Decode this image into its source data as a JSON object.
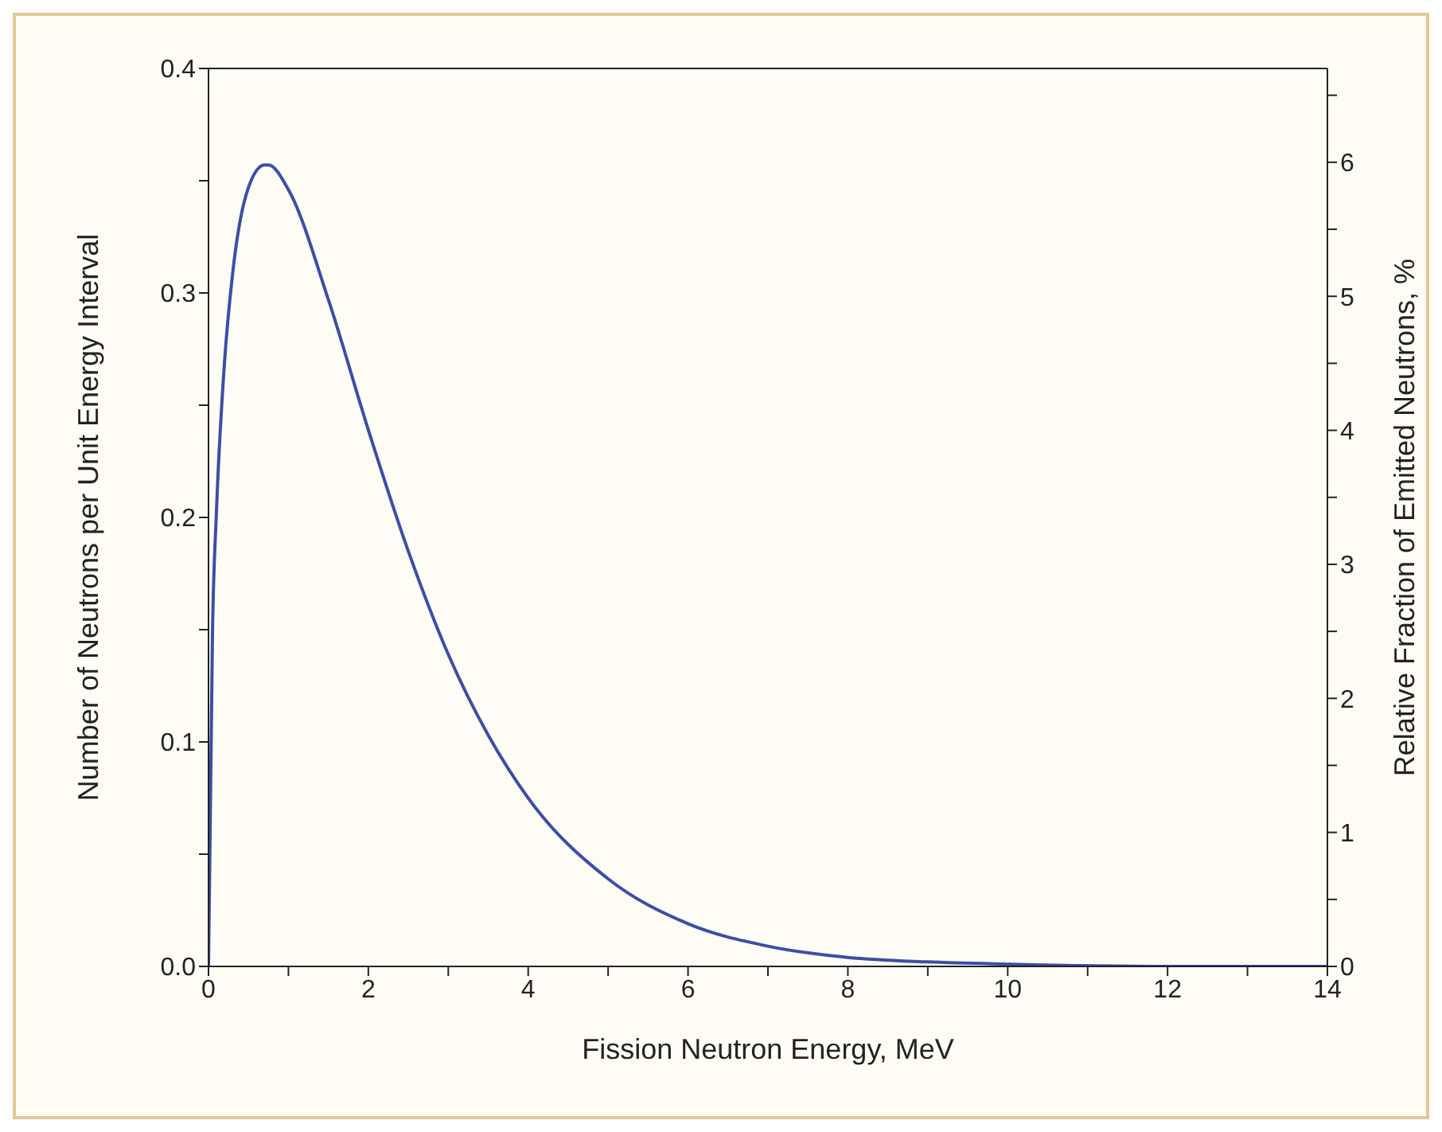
{
  "chart_data": {
    "type": "line",
    "xlabel": "Fission Neutron Energy, MeV",
    "ylabel": "Number of Neutrons per Unit Energy Interval",
    "y2label": "Relative Fraction of Emitted Neutrons, %",
    "x": [
      0,
      0.05,
      0.1,
      0.2,
      0.3,
      0.5,
      0.7,
      0.75,
      1,
      1.5,
      2,
      2.5,
      3,
      3.5,
      4,
      5,
      6,
      7,
      8,
      9,
      10,
      12,
      14
    ],
    "series": [
      {
        "color": "#3b4fa3",
        "values": [
          0,
          0.149,
          0.203,
          0.269,
          0.308,
          0.347,
          0.357,
          0.357,
          0.346,
          0.297,
          0.239,
          0.185,
          0.139,
          0.103,
          0.075,
          0.039,
          0.019,
          0.009,
          0.004,
          0.002,
          0.001,
          0,
          0
        ]
      }
    ],
    "xlim": [
      0,
      14
    ],
    "xticks": [
      0,
      {
        "value": 1,
        "label": null
      },
      2,
      {
        "value": 3,
        "label": null
      },
      4,
      {
        "value": 5,
        "label": null
      },
      6,
      {
        "value": 7,
        "label": null
      },
      8,
      {
        "value": 9,
        "label": null
      },
      10,
      {
        "value": 11,
        "label": null
      },
      12,
      {
        "value": 13,
        "label": null
      },
      14
    ],
    "ylim": [
      0,
      0.4
    ],
    "yticks": [
      {
        "value": 0,
        "label": "0.0"
      },
      {
        "value": 0.05,
        "label": null
      },
      0.1,
      {
        "value": 0.15,
        "label": null
      },
      0.2,
      {
        "value": 0.25,
        "label": null
      },
      0.3,
      {
        "value": 0.35,
        "label": null
      },
      0.4
    ],
    "y2lim": [
      0,
      6.7
    ],
    "y2ticks": [
      0,
      {
        "value": 0.5,
        "label": null
      },
      1,
      {
        "value": 1.5,
        "label": null
      },
      2,
      {
        "value": 2.5,
        "label": null
      },
      3,
      {
        "value": 3.5,
        "label": null
      },
      4,
      {
        "value": 4.5,
        "label": null
      },
      5,
      {
        "value": 5.5,
        "label": null
      },
      6,
      {
        "value": 6.5,
        "label": null
      }
    ],
    "grid": false,
    "legend": false,
    "marker": "none",
    "line_style": "solid"
  }
}
